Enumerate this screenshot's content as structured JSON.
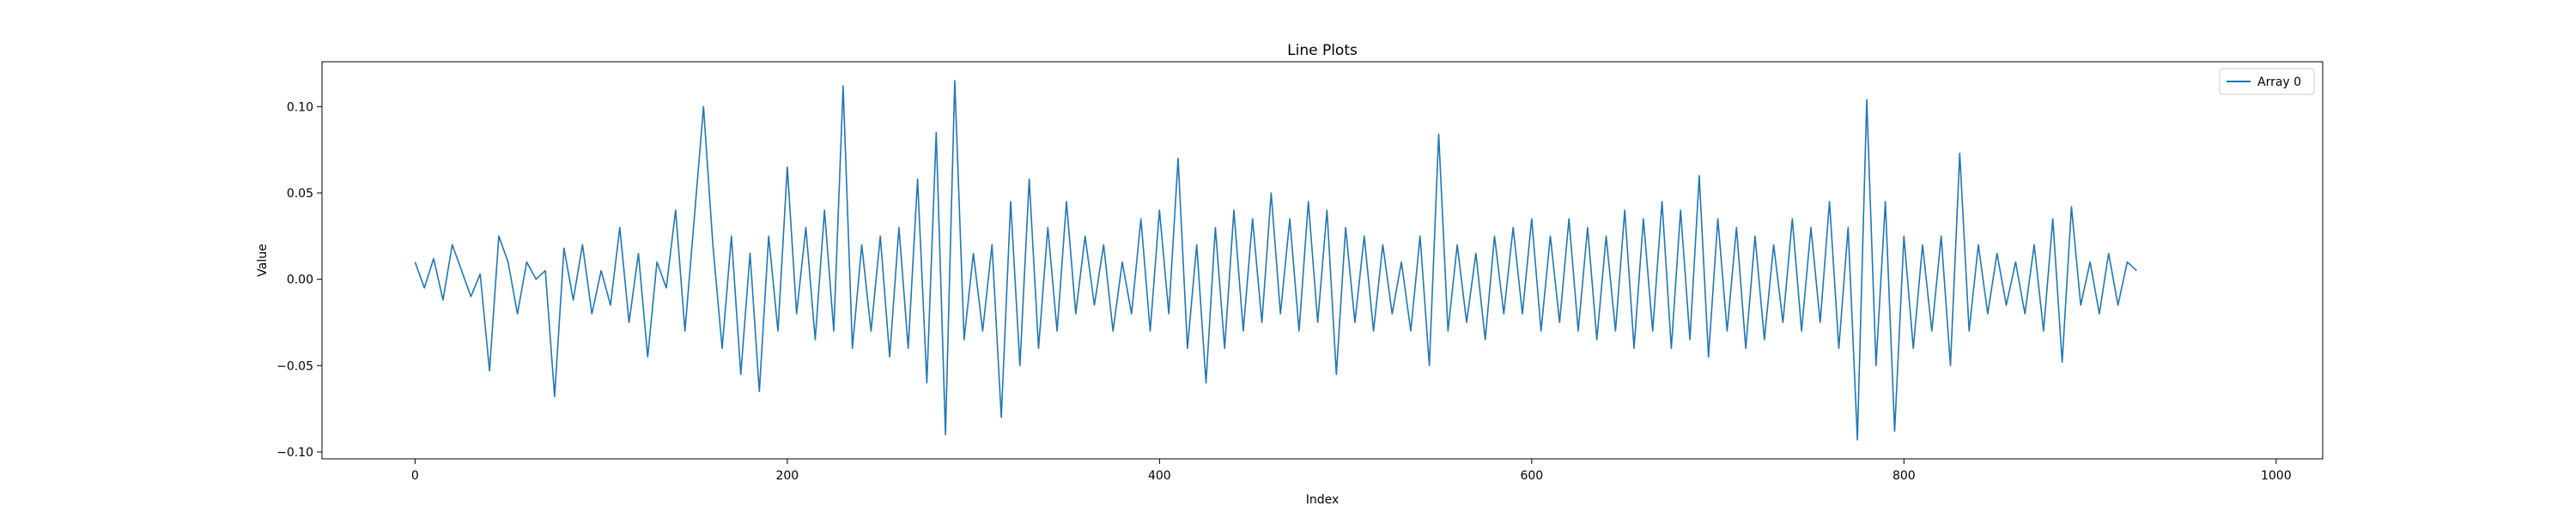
{
  "chart_data": {
    "type": "line",
    "title": "Line Plots",
    "xlabel": "Index",
    "ylabel": "Value",
    "xlim": [
      -50,
      1025
    ],
    "ylim": [
      -0.104,
      0.126
    ],
    "x_ticks": [
      0,
      200,
      400,
      600,
      800,
      1000
    ],
    "x_tick_labels": [
      "0",
      "200",
      "400",
      "600",
      "800",
      "1000"
    ],
    "y_ticks": [
      -0.1,
      -0.05,
      0.0,
      0.05,
      0.1
    ],
    "y_tick_labels": [
      "−0.10",
      "−0.05",
      "0.00",
      "0.05",
      "0.10"
    ],
    "legend_position": "top-right",
    "grid": false,
    "series": [
      {
        "name": "Array 0",
        "color": "#1f77b4",
        "x_start": 0,
        "x_step": 5,
        "values": [
          0.01,
          -0.005,
          0.012,
          -0.012,
          0.02,
          0.005,
          -0.01,
          0.003,
          -0.053,
          0.025,
          0.01,
          -0.02,
          0.01,
          0.0,
          0.005,
          -0.068,
          0.018,
          -0.012,
          0.02,
          -0.02,
          0.005,
          -0.015,
          0.03,
          -0.025,
          0.015,
          -0.045,
          0.01,
          -0.005,
          0.04,
          -0.03,
          0.035,
          0.1,
          0.02,
          -0.04,
          0.025,
          -0.055,
          0.015,
          -0.065,
          0.025,
          -0.03,
          0.065,
          -0.02,
          0.03,
          -0.035,
          0.04,
          -0.03,
          0.112,
          -0.04,
          0.02,
          -0.03,
          0.025,
          -0.045,
          0.03,
          -0.04,
          0.058,
          -0.06,
          0.085,
          -0.09,
          0.115,
          -0.035,
          0.015,
          -0.03,
          0.02,
          -0.08,
          0.045,
          -0.05,
          0.058,
          -0.04,
          0.03,
          -0.03,
          0.045,
          -0.02,
          0.025,
          -0.015,
          0.02,
          -0.03,
          0.01,
          -0.02,
          0.035,
          -0.03,
          0.04,
          -0.02,
          0.07,
          -0.04,
          0.02,
          -0.06,
          0.03,
          -0.04,
          0.04,
          -0.03,
          0.035,
          -0.025,
          0.05,
          -0.02,
          0.035,
          -0.03,
          0.045,
          -0.025,
          0.04,
          -0.055,
          0.03,
          -0.025,
          0.025,
          -0.03,
          0.02,
          -0.02,
          0.01,
          -0.03,
          0.025,
          -0.05,
          0.084,
          -0.03,
          0.02,
          -0.025,
          0.015,
          -0.035,
          0.025,
          -0.02,
          0.03,
          -0.02,
          0.035,
          -0.03,
          0.025,
          -0.025,
          0.035,
          -0.03,
          0.03,
          -0.035,
          0.025,
          -0.03,
          0.04,
          -0.04,
          0.035,
          -0.03,
          0.045,
          -0.04,
          0.04,
          -0.035,
          0.06,
          -0.045,
          0.035,
          -0.03,
          0.03,
          -0.04,
          0.025,
          -0.035,
          0.02,
          -0.025,
          0.035,
          -0.03,
          0.03,
          -0.025,
          0.045,
          -0.04,
          0.03,
          -0.093,
          0.104,
          -0.05,
          0.045,
          -0.088,
          0.025,
          -0.04,
          0.02,
          -0.03,
          0.025,
          -0.05,
          0.073,
          -0.03,
          0.02,
          -0.02,
          0.015,
          -0.015,
          0.01,
          -0.02,
          0.02,
          -0.03,
          0.035,
          -0.048,
          0.042,
          -0.015,
          0.01,
          -0.02,
          0.015,
          -0.015,
          0.01,
          0.005
        ]
      }
    ]
  }
}
